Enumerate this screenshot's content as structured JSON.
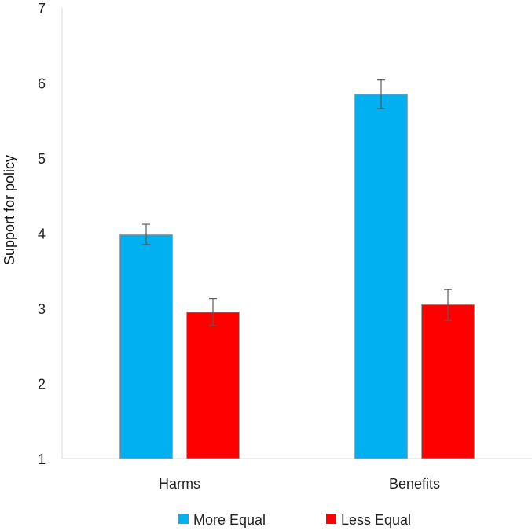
{
  "chart_data": {
    "type": "bar",
    "title": "",
    "xlabel": "",
    "ylabel": "Support for policy",
    "ylim": [
      1,
      7
    ],
    "yticks": [
      1,
      2,
      3,
      4,
      5,
      6,
      7
    ],
    "categories": [
      "Harms",
      "Benefits"
    ],
    "series": [
      {
        "name": "More Equal",
        "color": "#00b0f0",
        "values": [
          3.98,
          5.85
        ],
        "error_low": [
          3.85,
          5.66
        ],
        "error_high": [
          4.12,
          6.04
        ]
      },
      {
        "name": "Less Equal",
        "color": "#ff0000",
        "values": [
          2.95,
          3.05
        ],
        "error_low": [
          2.77,
          2.84
        ],
        "error_high": [
          3.13,
          3.25
        ]
      }
    ],
    "grid": false,
    "legend_position": "bottom"
  }
}
